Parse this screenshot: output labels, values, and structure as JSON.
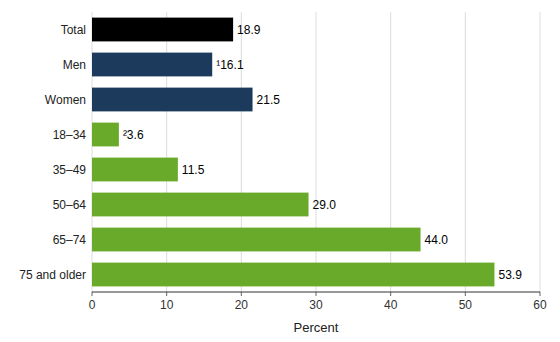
{
  "chart_data": {
    "type": "bar",
    "orientation": "horizontal",
    "categories": [
      "Total",
      "Men",
      "Women",
      "18–34",
      "35–49",
      "50–64",
      "65–74",
      "75 and older"
    ],
    "values": [
      18.9,
      16.1,
      21.5,
      3.6,
      11.5,
      29.0,
      44.0,
      53.9
    ],
    "value_labels": [
      "18.9",
      "¹16.1",
      "21.5",
      "²3.6",
      "11.5",
      "29.0",
      "44.0",
      "53.9"
    ],
    "data_labels": true,
    "colors": [
      "#000000",
      "#1b3a5c",
      "#1b3a5c",
      "#6aaa2a",
      "#6aaa2a",
      "#6aaa2a",
      "#6aaa2a",
      "#6aaa2a"
    ],
    "xlabel": "Percent",
    "xlim": [
      0,
      60
    ],
    "xticks": [
      0,
      10,
      20,
      30,
      40,
      50,
      60
    ],
    "grid": true
  }
}
